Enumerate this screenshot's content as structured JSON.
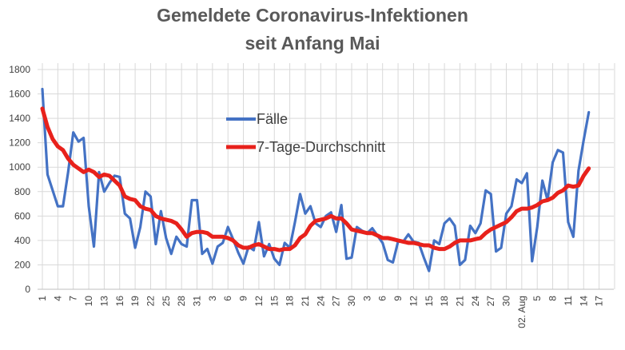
{
  "chart_data": {
    "type": "line",
    "title": "Gemeldete Coronavirus-Infektionen",
    "subtitle": "seit Anfang Mai",
    "xlabel": "",
    "ylabel": "",
    "ylim": [
      0,
      1800
    ],
    "y_ticks": [
      "0",
      "200",
      "400",
      "600",
      "800",
      "1000",
      "1200",
      "1400",
      "1600",
      "1800"
    ],
    "x_tick_labels": [
      "1",
      "4",
      "7",
      "10",
      "13",
      "16",
      "19",
      "22",
      "25",
      "28",
      "31",
      "3",
      "6",
      "9",
      "12",
      "15",
      "18",
      "21",
      "24",
      "27",
      "30",
      "3",
      "6",
      "9",
      "12",
      "15",
      "18",
      "21",
      "24",
      "27",
      "30",
      "02. Aug",
      "5",
      "8",
      "11",
      "14",
      "17"
    ],
    "grid": true,
    "legend_position": "center",
    "colors": {
      "faelle": "#4472C4",
      "avg": "#E8211B"
    },
    "series": [
      {
        "name": "Fälle",
        "values": [
          1640,
          940,
          810,
          680,
          680,
          960,
          1285,
          1210,
          1240,
          680,
          350,
          960,
          800,
          870,
          930,
          920,
          620,
          580,
          340,
          510,
          800,
          760,
          370,
          640,
          420,
          290,
          430,
          370,
          350,
          730,
          730,
          290,
          330,
          210,
          350,
          380,
          510,
          410,
          300,
          210,
          350,
          320,
          550,
          270,
          370,
          250,
          200,
          380,
          340,
          550,
          780,
          620,
          680,
          540,
          510,
          600,
          630,
          470,
          690,
          250,
          260,
          510,
          480,
          460,
          500,
          440,
          380,
          240,
          220,
          390,
          390,
          450,
          390,
          380,
          260,
          150,
          400,
          370,
          540,
          580,
          520,
          200,
          240,
          520,
          460,
          540,
          810,
          780,
          310,
          340,
          620,
          680,
          900,
          870,
          950,
          230,
          510,
          890,
          730,
          1040,
          1140,
          1120,
          550,
          430,
          970,
          1220,
          1450
        ],
        "x_start": 1
      },
      {
        "name": "7-Tage-Durchschnitt",
        "values": [
          1480,
          1330,
          1230,
          1170,
          1140,
          1070,
          1020,
          990,
          960,
          980,
          960,
          920,
          940,
          930,
          890,
          850,
          760,
          740,
          730,
          680,
          660,
          650,
          600,
          580,
          570,
          560,
          540,
          490,
          430,
          460,
          470,
          470,
          460,
          430,
          430,
          430,
          420,
          400,
          360,
          340,
          340,
          360,
          370,
          350,
          330,
          330,
          320,
          330,
          330,
          360,
          420,
          450,
          520,
          560,
          570,
          580,
          600,
          580,
          580,
          540,
          490,
          480,
          470,
          460,
          460,
          440,
          420,
          420,
          410,
          400,
          390,
          380,
          380,
          370,
          360,
          360,
          340,
          330,
          330,
          350,
          380,
          400,
          400,
          400,
          410,
          420,
          460,
          490,
          510,
          530,
          550,
          590,
          640,
          660,
          660,
          670,
          690,
          720,
          730,
          750,
          790,
          810,
          850,
          840,
          850,
          930,
          990
        ],
        "x_start": 1
      }
    ]
  }
}
